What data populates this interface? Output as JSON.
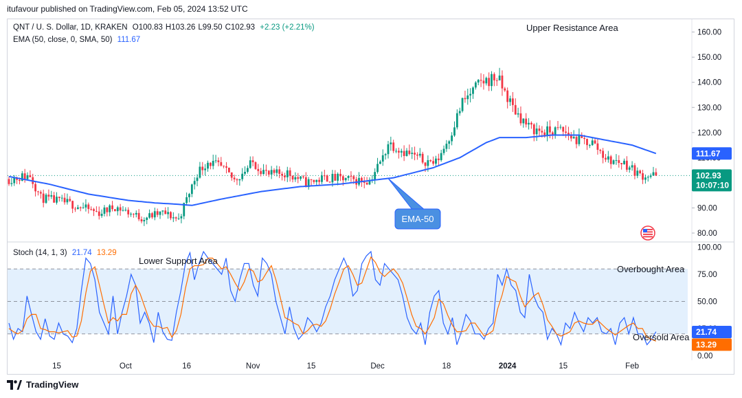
{
  "publisher": "itufavour published on TradingView.com, Feb 05, 2024 13:52 UTC",
  "footer": {
    "brand": "TradingView"
  },
  "legend": {
    "symbol": "QNT / U. S. Dollar, 1D, KRAKEN",
    "ohlc": {
      "o": "O100.83",
      "h": "H103.26",
      "l": "L99.50",
      "c": "C102.93",
      "change": "+2.23 (+2.21%)"
    },
    "ema_label": "EMA (50, close, 0, SMA, 50)",
    "ema_value": "111.67",
    "stoch_label": "Stoch (14, 1, 3)",
    "stoch_k": "21.74",
    "stoch_d": "13.29"
  },
  "colors": {
    "up": "#089981",
    "down": "#f23645",
    "ema": "#2962ff",
    "stoch_k": "#2962ff",
    "stoch_d": "#ff6d00",
    "band": "#e3f0fd"
  },
  "chart_data": [
    {
      "type": "candlestick",
      "title": "QNT / U. S. Dollar, 1D, KRAKEN",
      "x_range": [
        "Sep 2023",
        "Feb 05, 2024"
      ],
      "x_ticks": [
        "15",
        "Oct",
        "16",
        "Nov",
        "15",
        "Dec",
        "18",
        "2024",
        "15",
        "Feb"
      ],
      "y_ticks": [
        "160.00",
        "150.00",
        "140.00",
        "130.00",
        "120.00",
        "110.00",
        "100.00",
        "90.00",
        "80.00"
      ],
      "ylim": [
        77,
        164
      ],
      "price_tag": {
        "value": "102.93",
        "countdown": "10:07:10"
      },
      "ema_tag": "111.67",
      "annotations": [
        "Upper Resistance Area",
        "EMA-50"
      ],
      "series": [
        {
          "name": "QNT / U. S. Dollar",
          "anchors": [
            [
              0,
              101.5
            ],
            [
              8,
              103
            ],
            [
              12,
              94
            ],
            [
              22,
              92
            ],
            [
              34,
              88
            ],
            [
              40,
              90.5
            ],
            [
              50,
              86
            ],
            [
              58,
              88
            ],
            [
              64,
              85.5
            ],
            [
              71,
              104
            ],
            [
              75,
              108.5
            ],
            [
              80,
              106
            ],
            [
              85,
              101
            ],
            [
              92,
              108
            ],
            [
              98,
              103
            ],
            [
              105,
              104
            ],
            [
              112,
              100
            ],
            [
              120,
              102
            ],
            [
              130,
              101
            ],
            [
              136,
              101
            ],
            [
              141,
              110
            ],
            [
              143,
              116
            ],
            [
              150,
              112
            ],
            [
              156,
              109
            ],
            [
              161,
              108
            ],
            [
              166,
              118
            ],
            [
              171,
              132
            ],
            [
              178,
              140
            ],
            [
              184,
              142
            ],
            [
              190,
              130
            ],
            [
              196,
              122
            ],
            [
              202,
              120
            ],
            [
              208,
              121
            ],
            [
              214,
              117
            ],
            [
              220,
              116
            ],
            [
              226,
              109
            ],
            [
              232,
              108
            ],
            [
              238,
              103
            ],
            [
              244,
              102.9
            ]
          ]
        },
        {
          "name": "EMA (50, close, 0, SMA, 50)",
          "anchors": [
            [
              0,
              102.5
            ],
            [
              15,
              99.5
            ],
            [
              30,
              95.5
            ],
            [
              45,
              93
            ],
            [
              55,
              92
            ],
            [
              63,
              91.5
            ],
            [
              69,
              91
            ],
            [
              80,
              93.5
            ],
            [
              95,
              96.5
            ],
            [
              110,
              98.5
            ],
            [
              125,
              99.5
            ],
            [
              145,
              102
            ],
            [
              160,
              106
            ],
            [
              170,
              110
            ],
            [
              180,
              116
            ],
            [
              185,
              118
            ],
            [
              195,
              118
            ],
            [
              205,
              119
            ],
            [
              215,
              119
            ],
            [
              225,
              117
            ],
            [
              235,
              115
            ],
            [
              244,
              111.67
            ]
          ]
        }
      ]
    },
    {
      "type": "line",
      "title": "Stoch (14, 1, 3)",
      "y_ticks": [
        "100.00",
        "75.00",
        "50.00",
        "25.00",
        "0.00"
      ],
      "ylim": [
        -3,
        103
      ],
      "levels": [
        80,
        50,
        20
      ],
      "annotations": [
        "Lower Support Area",
        "Overbought Area",
        "Oversold Area"
      ],
      "series": [
        {
          "name": "%K",
          "last": 21.74,
          "values": [
            30,
            15,
            25,
            22,
            55,
            38,
            22,
            15,
            34,
            18,
            15,
            30,
            20,
            18,
            12,
            25,
            60,
            90,
            85,
            70,
            40,
            30,
            20,
            55,
            20,
            40,
            55,
            75,
            65,
            30,
            40,
            30,
            12,
            40,
            22,
            15,
            14,
            40,
            60,
            85,
            95,
            70,
            85,
            96,
            90,
            85,
            80,
            75,
            90,
            60,
            50,
            70,
            85,
            85,
            65,
            55,
            90,
            85,
            75,
            50,
            35,
            20,
            45,
            25,
            15,
            20,
            35,
            30,
            22,
            30,
            45,
            55,
            70,
            80,
            90,
            80,
            55,
            60,
            85,
            92,
            96,
            70,
            65,
            85,
            80,
            75,
            70,
            55,
            35,
            25,
            20,
            30,
            10,
            40,
            55,
            60,
            30,
            20,
            35,
            10,
            22,
            38,
            32,
            20,
            20,
            15,
            25,
            30,
            75,
            65,
            80,
            65,
            60,
            40,
            35,
            75,
            55,
            45,
            40,
            15,
            25,
            20,
            10,
            30,
            25,
            40,
            30,
            22,
            35,
            30,
            35,
            22,
            20,
            25,
            10,
            30,
            35,
            20,
            35,
            20,
            20,
            10,
            15,
            22
          ]
        },
        {
          "name": "%D",
          "last": 13.29,
          "values": [
            25,
            22,
            20,
            23,
            34,
            38,
            38,
            25,
            24,
            22,
            22,
            21,
            22,
            23,
            17,
            18,
            32,
            58,
            78,
            82,
            65,
            47,
            30,
            35,
            32,
            38,
            38,
            57,
            65,
            57,
            45,
            33,
            27,
            27,
            25,
            26,
            17,
            23,
            38,
            62,
            80,
            83,
            83,
            84,
            90,
            90,
            85,
            80,
            82,
            75,
            67,
            60,
            68,
            80,
            78,
            68,
            70,
            77,
            83,
            70,
            53,
            35,
            33,
            30,
            28,
            20,
            23,
            28,
            29,
            27,
            32,
            43,
            57,
            68,
            80,
            83,
            75,
            65,
            67,
            79,
            91,
            86,
            77,
            73,
            77,
            80,
            75,
            67,
            53,
            38,
            27,
            25,
            20,
            27,
            35,
            52,
            48,
            37,
            28,
            22,
            22,
            23,
            30,
            30,
            24,
            18,
            20,
            23,
            43,
            56,
            73,
            70,
            68,
            55,
            45,
            50,
            55,
            58,
            47,
            33,
            27,
            20,
            18,
            20,
            22,
            30,
            32,
            30,
            29,
            29,
            33,
            29,
            25,
            22,
            19,
            22,
            25,
            28,
            30,
            25,
            25,
            17,
            15,
            13.29
          ]
        }
      ]
    }
  ]
}
